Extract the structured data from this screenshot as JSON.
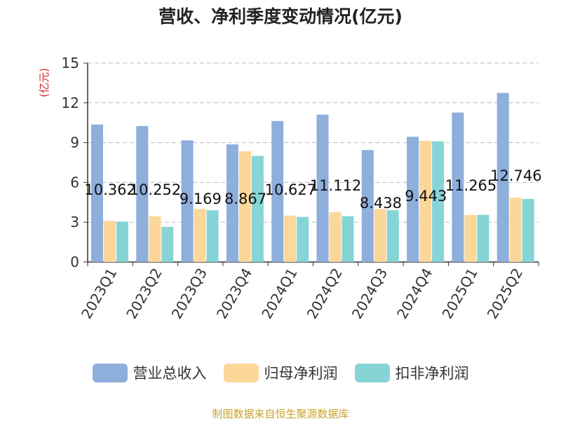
{
  "title": "营收、净利季度变动情况(亿元)",
  "footer": "制图数据来自恒生聚源数据库",
  "chart_data": {
    "type": "bar",
    "title": "营收、净利季度变动情况(亿元)",
    "ylabel": "(亿元)",
    "ylim": [
      0,
      15
    ],
    "yticks": [
      0,
      3,
      6,
      9,
      12,
      15
    ],
    "grid": true,
    "legend_position": "bottom",
    "categories": [
      "2023Q1",
      "2023Q2",
      "2023Q3",
      "2023Q4",
      "2024Q1",
      "2024Q2",
      "2024Q3",
      "2024Q4",
      "2025Q1",
      "2025Q2"
    ],
    "series": [
      {
        "name": "营业总收入",
        "color": "#8eaedb",
        "values": [
          10.362,
          10.252,
          9.169,
          8.867,
          10.627,
          11.112,
          8.438,
          9.443,
          11.265,
          12.746
        ]
      },
      {
        "name": "归母净利润",
        "color": "#fcd79a",
        "values": [
          3.1,
          3.45,
          4.0,
          8.35,
          3.5,
          3.75,
          4.0,
          9.15,
          3.55,
          4.85
        ]
      },
      {
        "name": "扣非净利润",
        "color": "#86d4d6",
        "values": [
          3.05,
          2.65,
          3.9,
          8.0,
          3.4,
          3.45,
          3.9,
          9.1,
          3.55,
          4.75
        ]
      }
    ],
    "data_labels": [
      "10.362",
      "10.252",
      "9.169",
      "8.867",
      "10.627",
      "11.112",
      "8.438",
      "9.443",
      "11.265",
      "12.746"
    ]
  }
}
